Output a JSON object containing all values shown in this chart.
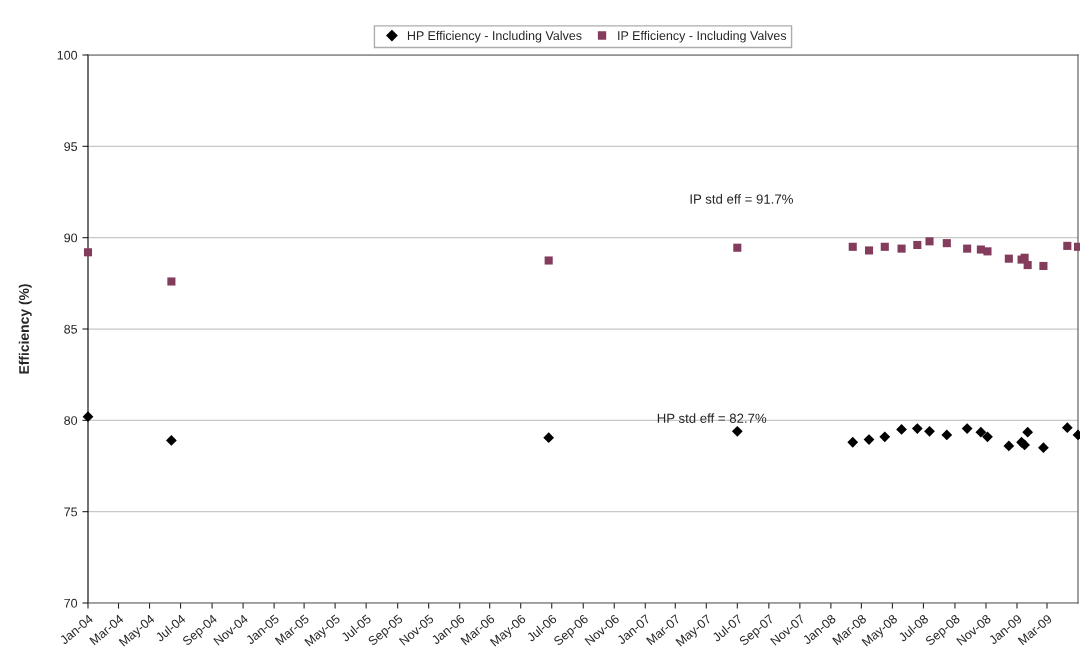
{
  "chart_data": {
    "type": "scatter",
    "ylabel": "Efficiency (%)",
    "xlim": [
      "2004-01-01",
      "2009-05-01"
    ],
    "xticks": [
      {
        "value": "2004-01-01",
        "label": "Jan-04"
      },
      {
        "value": "2004-03-01",
        "label": "Mar-04"
      },
      {
        "value": "2004-05-01",
        "label": "May-04"
      },
      {
        "value": "2004-07-01",
        "label": "Jul-04"
      },
      {
        "value": "2004-09-01",
        "label": "Sep-04"
      },
      {
        "value": "2004-11-01",
        "label": "Nov-04"
      },
      {
        "value": "2005-01-01",
        "label": "Jan-05"
      },
      {
        "value": "2005-03-01",
        "label": "Mar-05"
      },
      {
        "value": "2005-05-01",
        "label": "May-05"
      },
      {
        "value": "2005-07-01",
        "label": "Jul-05"
      },
      {
        "value": "2005-09-01",
        "label": "Sep-05"
      },
      {
        "value": "2005-11-01",
        "label": "Nov-05"
      },
      {
        "value": "2006-01-01",
        "label": "Jan-06"
      },
      {
        "value": "2006-03-01",
        "label": "Mar-06"
      },
      {
        "value": "2006-05-01",
        "label": "May-06"
      },
      {
        "value": "2006-07-01",
        "label": "Jul-06"
      },
      {
        "value": "2006-09-01",
        "label": "Sep-06"
      },
      {
        "value": "2006-11-01",
        "label": "Nov-06"
      },
      {
        "value": "2007-01-01",
        "label": "Jan-07"
      },
      {
        "value": "2007-03-01",
        "label": "Mar-07"
      },
      {
        "value": "2007-05-01",
        "label": "May-07"
      },
      {
        "value": "2007-07-01",
        "label": "Jul-07"
      },
      {
        "value": "2007-09-01",
        "label": "Sep-07"
      },
      {
        "value": "2007-11-01",
        "label": "Nov-07"
      },
      {
        "value": "2008-01-01",
        "label": "Jan-08"
      },
      {
        "value": "2008-03-01",
        "label": "Mar-08"
      },
      {
        "value": "2008-05-01",
        "label": "May-08"
      },
      {
        "value": "2008-07-01",
        "label": "Jul-08"
      },
      {
        "value": "2008-09-01",
        "label": "Sep-08"
      },
      {
        "value": "2008-11-01",
        "label": "Nov-08"
      },
      {
        "value": "2009-01-01",
        "label": "Jan-09"
      },
      {
        "value": "2009-03-01",
        "label": "Mar-09"
      }
    ],
    "ylim": [
      70,
      100
    ],
    "yticks": [
      70,
      75,
      80,
      85,
      90,
      95,
      100
    ],
    "grid": "y",
    "legend": "top",
    "x": [
      "2004-01-01",
      "2004-06-13",
      "2006-06-25",
      "2007-07-01",
      "2008-02-13",
      "2008-03-16",
      "2008-04-16",
      "2008-05-19",
      "2008-06-19",
      "2008-07-13",
      "2008-08-16",
      "2008-09-25",
      "2008-10-22",
      "2008-11-04",
      "2008-12-16",
      "2009-01-10",
      "2009-01-16",
      "2009-01-22",
      "2009-02-22",
      "2009-04-10",
      "2009-05-01"
    ],
    "series": [
      {
        "name": "HP Efficiency - Including Valves",
        "color": "#000000",
        "marker": "diamond",
        "values": [
          80.2,
          78.9,
          79.05,
          79.4,
          78.8,
          78.95,
          79.1,
          79.5,
          79.55,
          79.4,
          79.2,
          79.55,
          79.35,
          79.1,
          78.6,
          78.8,
          78.65,
          79.35,
          78.5,
          79.6,
          79.2
        ]
      },
      {
        "name": "IP Efficiency - Including Valves",
        "color": "#843c5c",
        "marker": "square",
        "values": [
          89.2,
          87.6,
          88.75,
          89.45,
          89.5,
          89.3,
          89.5,
          89.4,
          89.6,
          89.8,
          89.7,
          89.4,
          89.35,
          89.25,
          88.85,
          88.8,
          88.9,
          88.5,
          88.45,
          89.55,
          89.5
        ]
      }
    ],
    "annotations": [
      "IP std eff = 91.7%",
      "HP std eff = 82.7%"
    ]
  }
}
